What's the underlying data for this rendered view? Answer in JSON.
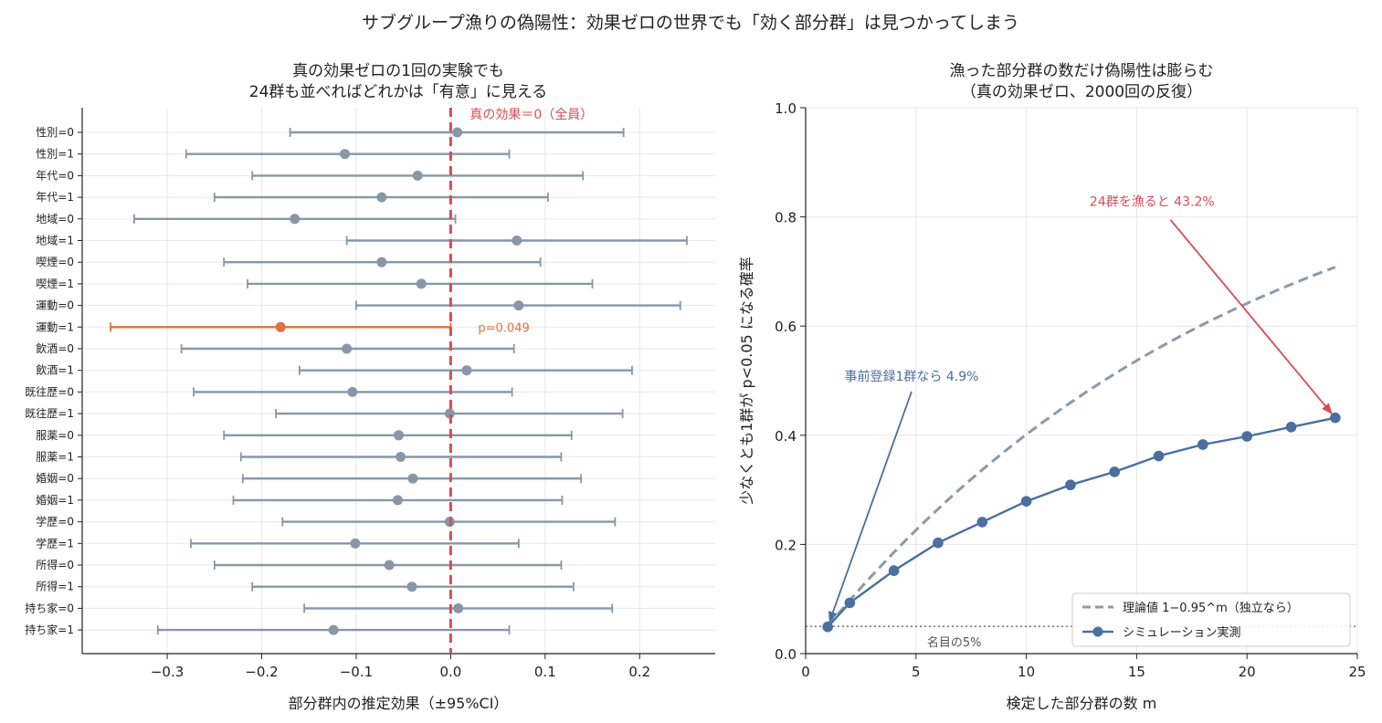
{
  "suptitle": "サブグループ漁りの偽陽性：効果ゼロの世界でも「効く部分群」は見つかってしまう",
  "colors": {
    "ci": "#8797a8",
    "highlight": "#e3713f",
    "zero_line": "#d94b55",
    "sim": "#4a6fa0",
    "theory": "#8a9aaa",
    "grid": "#e8e8e8",
    "arrow_red": "#d94b55",
    "arrow_blue": "#4a6fa0"
  },
  "chart_data": [
    {
      "type": "scatter",
      "subtype": "forest",
      "title_lines": [
        "真の効果ゼロの1回の実験でも",
        "24群も並べればどれかは「有意」に見える"
      ],
      "xlabel": "部分群内の推定効果（±95%CI）",
      "xlim": [
        -0.39,
        0.28
      ],
      "xticks": [
        -0.3,
        -0.2,
        -0.1,
        0.0,
        0.1,
        0.2
      ],
      "xtick_labels": [
        "−0.3",
        "−0.2",
        "−0.1",
        "0.0",
        "0.1",
        "0.2"
      ],
      "grid": true,
      "reference_line": {
        "x": 0,
        "label": "真の効果＝0（全員）"
      },
      "highlight_label": "p=0.049",
      "rows": [
        {
          "label": "性別=0",
          "est": 0.007,
          "lo": -0.17,
          "hi": 0.183,
          "sig": false
        },
        {
          "label": "性別=1",
          "est": -0.112,
          "lo": -0.28,
          "hi": 0.062,
          "sig": false
        },
        {
          "label": "年代=0",
          "est": -0.035,
          "lo": -0.21,
          "hi": 0.14,
          "sig": false
        },
        {
          "label": "年代=1",
          "est": -0.073,
          "lo": -0.25,
          "hi": 0.103,
          "sig": false
        },
        {
          "label": "地域=0",
          "est": -0.165,
          "lo": -0.335,
          "hi": 0.005,
          "sig": false
        },
        {
          "label": "地域=1",
          "est": 0.07,
          "lo": -0.11,
          "hi": 0.25,
          "sig": false
        },
        {
          "label": "喫煙=0",
          "est": -0.073,
          "lo": -0.24,
          "hi": 0.095,
          "sig": false
        },
        {
          "label": "喫煙=1",
          "est": -0.031,
          "lo": -0.215,
          "hi": 0.15,
          "sig": false
        },
        {
          "label": "運動=0",
          "est": 0.072,
          "lo": -0.1,
          "hi": 0.243,
          "sig": false
        },
        {
          "label": "運動=1",
          "est": -0.18,
          "lo": -0.36,
          "hi": 0.0,
          "sig": true
        },
        {
          "label": "飲酒=0",
          "est": -0.11,
          "lo": -0.285,
          "hi": 0.067,
          "sig": false
        },
        {
          "label": "飲酒=1",
          "est": 0.017,
          "lo": -0.16,
          "hi": 0.192,
          "sig": false
        },
        {
          "label": "既往歴=0",
          "est": -0.104,
          "lo": -0.272,
          "hi": 0.065,
          "sig": false
        },
        {
          "label": "既往歴=1",
          "est": -0.001,
          "lo": -0.185,
          "hi": 0.182,
          "sig": false
        },
        {
          "label": "服薬=0",
          "est": -0.055,
          "lo": -0.24,
          "hi": 0.128,
          "sig": false
        },
        {
          "label": "服薬=1",
          "est": -0.053,
          "lo": -0.222,
          "hi": 0.117,
          "sig": false
        },
        {
          "label": "婚姻=0",
          "est": -0.04,
          "lo": -0.22,
          "hi": 0.138,
          "sig": false
        },
        {
          "label": "婚姻=1",
          "est": -0.056,
          "lo": -0.23,
          "hi": 0.118,
          "sig": false
        },
        {
          "label": "学歴=0",
          "est": -0.001,
          "lo": -0.178,
          "hi": 0.174,
          "sig": false
        },
        {
          "label": "学歴=1",
          "est": -0.101,
          "lo": -0.275,
          "hi": 0.072,
          "sig": false
        },
        {
          "label": "所得=0",
          "est": -0.065,
          "lo": -0.25,
          "hi": 0.117,
          "sig": false
        },
        {
          "label": "所得=1",
          "est": -0.041,
          "lo": -0.21,
          "hi": 0.13,
          "sig": false
        },
        {
          "label": "持ち家=0",
          "est": 0.008,
          "lo": -0.155,
          "hi": 0.171,
          "sig": false
        },
        {
          "label": "持ち家=1",
          "est": -0.124,
          "lo": -0.31,
          "hi": 0.062,
          "sig": false
        }
      ]
    },
    {
      "type": "line",
      "title_lines": [
        "漁った部分群の数だけ偽陽性は膨らむ",
        "（真の効果ゼロ、2000回の反復）"
      ],
      "xlabel": "検定した部分群の数 m",
      "ylabel": "少なくとも1群が p<0.05 になる確率",
      "xlim": [
        0,
        25
      ],
      "ylim": [
        0,
        1.0
      ],
      "xticks": [
        0,
        5,
        10,
        15,
        20,
        25
      ],
      "yticks": [
        0.0,
        0.2,
        0.4,
        0.6,
        0.8,
        1.0
      ],
      "grid": true,
      "legend_position": "lower-right",
      "nominal_line": {
        "y": 0.05,
        "label": "名目の5%"
      },
      "series": [
        {
          "name": "理論値 1−0.95^m（独立なら）",
          "style": "dashed",
          "formula": "1-0.95^m",
          "x_range": [
            1,
            24
          ]
        },
        {
          "name": "シミュレーション実測",
          "style": "solid-markers",
          "x": [
            1,
            2,
            4,
            6,
            8,
            10,
            12,
            14,
            16,
            18,
            20,
            22,
            24
          ],
          "y": [
            0.049,
            0.093,
            0.152,
            0.203,
            0.241,
            0.279,
            0.309,
            0.333,
            0.362,
            0.383,
            0.398,
            0.415,
            0.432
          ]
        }
      ],
      "annotations": [
        {
          "text": "24群を漁ると 43.2%",
          "point": [
            24,
            0.432
          ],
          "color": "red",
          "text_at": [
            15.7,
            0.82
          ]
        },
        {
          "text": "事前登録1群なら 4.9%",
          "point": [
            1,
            0.049
          ],
          "color": "blue",
          "text_at": [
            4.8,
            0.5
          ]
        }
      ]
    }
  ]
}
